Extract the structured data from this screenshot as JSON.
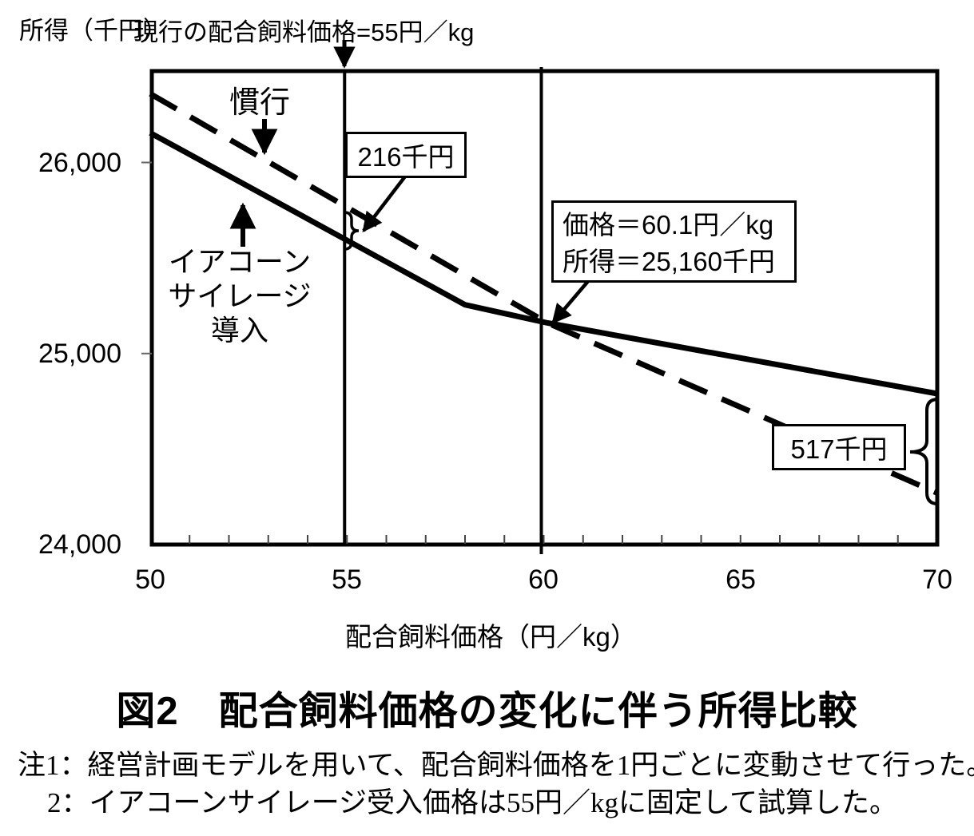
{
  "header": {
    "y_axis_unit_label": "所得（千円）",
    "current_price_label": "現行の配合飼料価格=55円／kg"
  },
  "chart_data": {
    "type": "line",
    "title": "図2　配合飼料価格の変化に伴う所得比較",
    "xlabel": "配合飼料価格（円／kg）",
    "ylabel": "所得（千円）",
    "xlim": [
      50,
      70
    ],
    "ylim": [
      24000,
      26487
    ],
    "grid": false,
    "x_ticks": {
      "values": [
        50,
        55,
        60,
        65,
        70
      ],
      "labels": [
        "50",
        "55",
        "60",
        "65",
        "70"
      ]
    },
    "y_ticks": {
      "values": [
        24000,
        25000,
        26000
      ],
      "labels": [
        "24,000",
        "25,000",
        "26,000"
      ]
    },
    "x_minor_tick_step": 1,
    "reference_lines_x": [
      55,
      60
    ],
    "series": [
      {
        "name": "慣行",
        "style": "dashed",
        "points": [
          [
            50,
            26360
          ],
          [
            60.1,
            25160
          ],
          [
            70,
            24270
          ]
        ]
      },
      {
        "name": "イアコーンサイレージ導入",
        "style": "solid",
        "points": [
          [
            50,
            26155
          ],
          [
            58,
            25255
          ],
          [
            60.1,
            25160
          ],
          [
            70,
            24790
          ]
        ]
      }
    ],
    "annotations": {
      "current_price": "現行の配合飼料価格=55円／kg",
      "gap_at_55": "216千円",
      "intersection_line1": "価格＝60.1円／kg",
      "intersection_line2": "所得＝25,160千円",
      "gap_at_70": "517千円",
      "series_dashed_label": "慣行",
      "series_solid_label_lines": [
        "イアコーン",
        "サイレージ",
        "導入"
      ]
    }
  },
  "notes": {
    "line1": "注1：経営計画モデルを用いて、配合飼料価格を1円ごとに変動させて行った。",
    "line2": "2：イアコーンサイレージ受入価格は55円／kgに固定して試算した。"
  },
  "colors": {
    "ink": "#000000",
    "background": "#ffffff"
  }
}
